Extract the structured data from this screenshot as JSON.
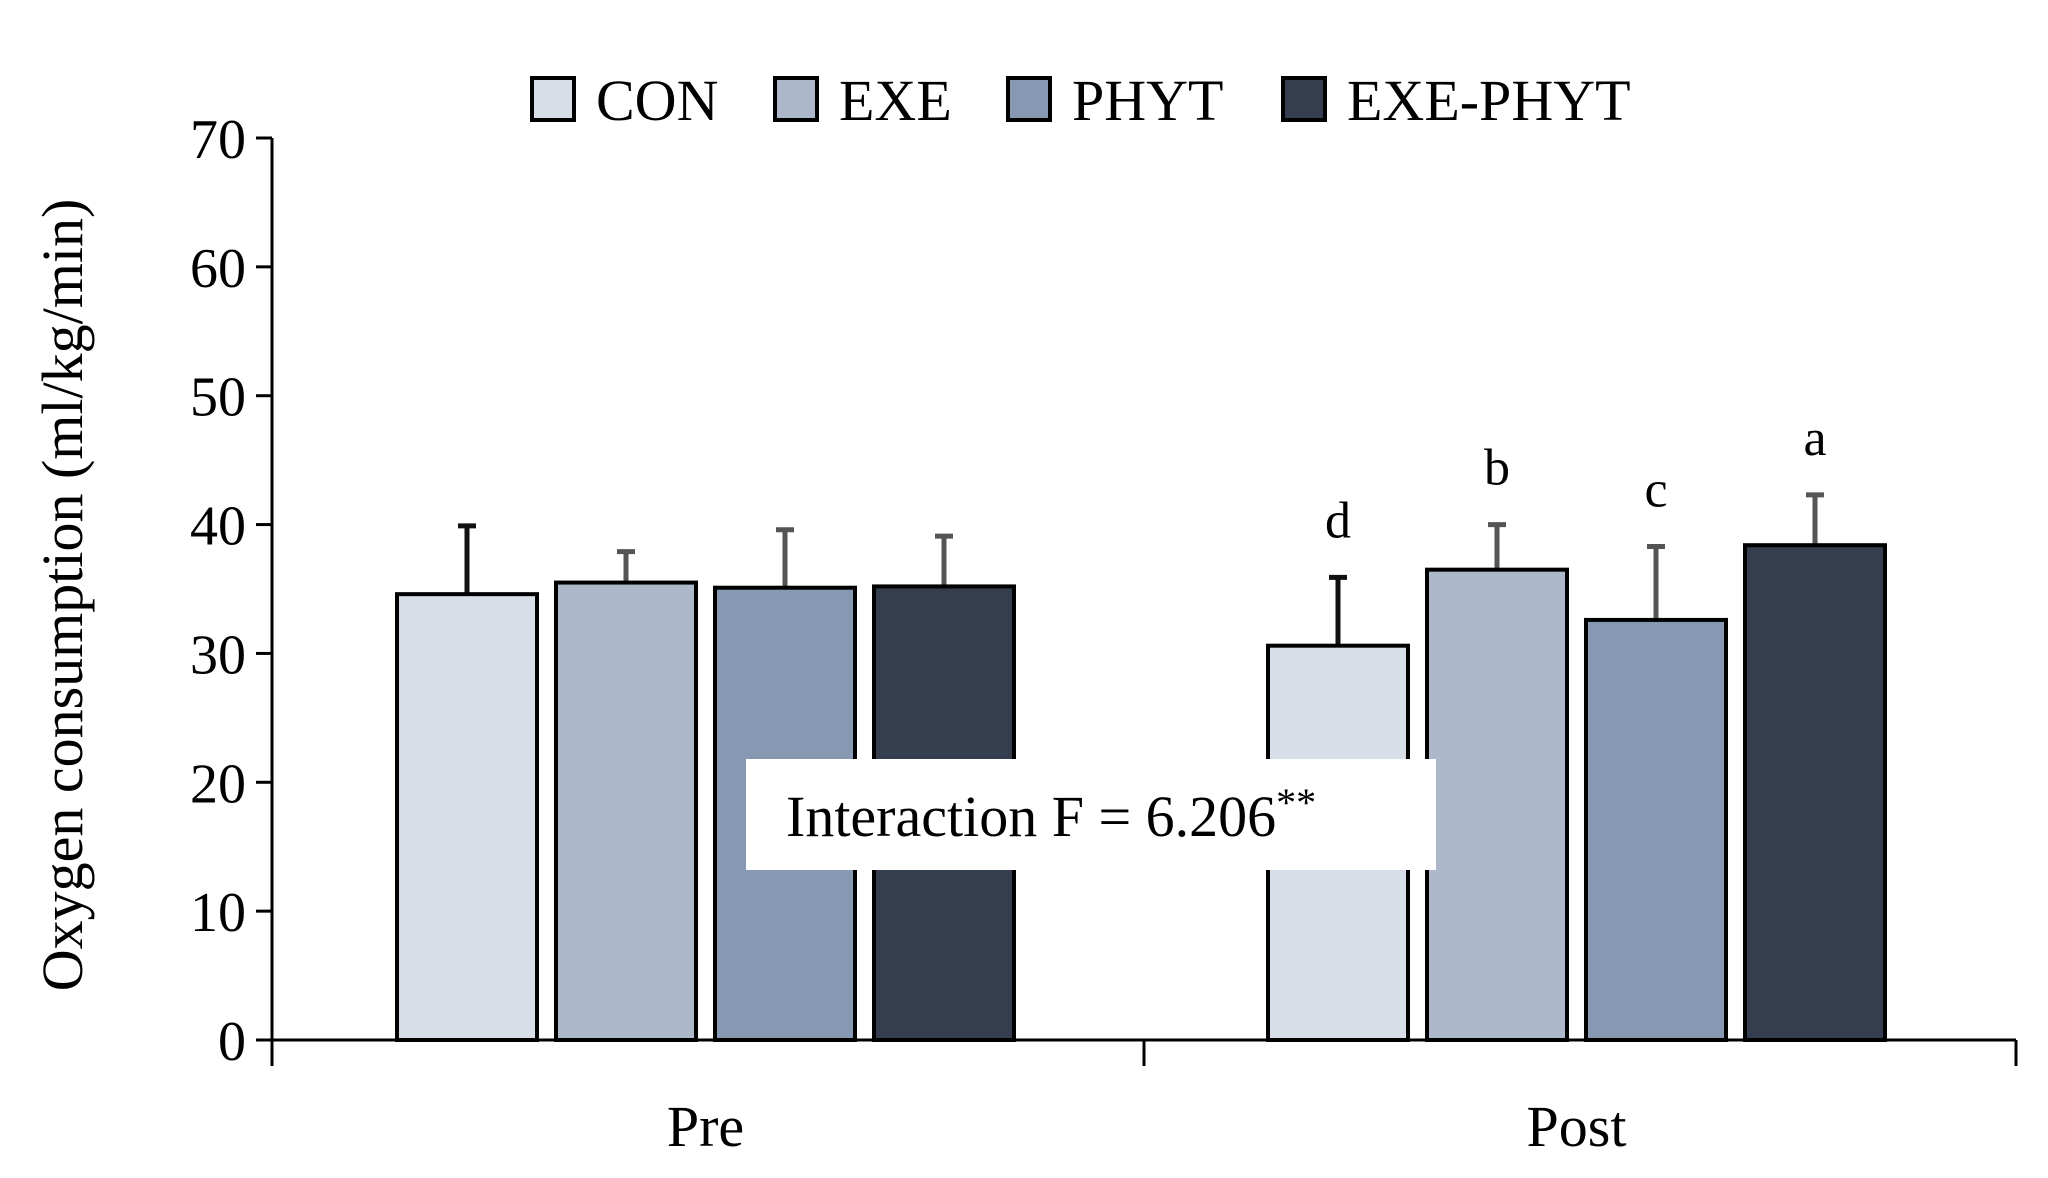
{
  "chart_data": {
    "type": "bar",
    "categories": [
      "Pre",
      "Post"
    ],
    "ylabel": "Oxygen consumption (ml/kg/min)",
    "ylim": [
      0,
      70
    ],
    "yticks": [
      0,
      10,
      20,
      30,
      40,
      50,
      60,
      70
    ],
    "grid": false,
    "legend_position": "top-center",
    "series": [
      {
        "name": "CON",
        "color": "#d8dee8",
        "values": [
          34.6,
          30.6
        ],
        "errors": [
          5.3,
          5.3
        ],
        "letters": [
          "",
          "d"
        ]
      },
      {
        "name": "EXE",
        "color": "#adb9cb",
        "values": [
          35.5,
          36.5
        ],
        "errors": [
          2.4,
          3.5
        ],
        "letters": [
          "",
          "b"
        ]
      },
      {
        "name": "PHYT",
        "color": "#8799b2",
        "values": [
          35.1,
          32.6
        ],
        "errors": [
          4.5,
          5.7
        ],
        "letters": [
          "",
          "c"
        ]
      },
      {
        "name": "EXE-PHYT",
        "color": "#343e4e",
        "values": [
          35.2,
          38.4
        ],
        "errors": [
          3.9,
          3.9
        ],
        "letters": [
          "",
          "a"
        ]
      }
    ],
    "annotation": {
      "text": "Interaction F = 6.206",
      "superscript": "**"
    }
  }
}
